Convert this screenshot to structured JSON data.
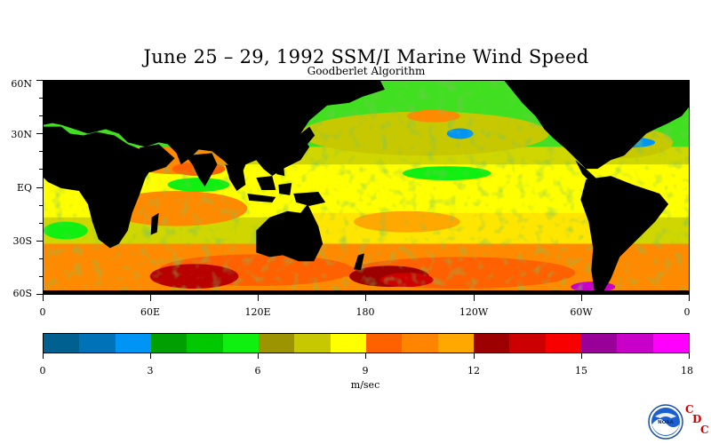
{
  "title": "June 25 – 29, 1992 SSM/I Marine Wind Speed",
  "subtitle": "Goodberlet Algorithm",
  "map": {
    "latitude_labels": [
      "60N",
      "30N",
      "EQ",
      "30S",
      "60S"
    ],
    "longitude_labels": [
      "0",
      "60E",
      "120E",
      "180",
      "120W",
      "60W",
      "0"
    ],
    "land_color": "#000000",
    "extent": {
      "lon_range": [
        0,
        360
      ],
      "lat_range": [
        -60,
        60
      ]
    }
  },
  "colorbar": {
    "units": "m/sec",
    "tick_labels": [
      "0",
      "3",
      "6",
      "9",
      "12",
      "15",
      "18"
    ],
    "value_range": [
      0,
      18
    ],
    "colors": [
      "#00608f",
      "#0073b8",
      "#0095f5",
      "#00a000",
      "#00c800",
      "#10f010",
      "#9c9400",
      "#c8c800",
      "#ffff00",
      "#ff6000",
      "#ff8400",
      "#ffa800",
      "#9c0000",
      "#cc0000",
      "#f80000",
      "#980098",
      "#c800c8",
      "#ff00ff"
    ]
  },
  "logo": {
    "emblem_text": "NOAA",
    "letters": [
      "C",
      "D",
      "C"
    ],
    "accent": "#d40000"
  }
}
